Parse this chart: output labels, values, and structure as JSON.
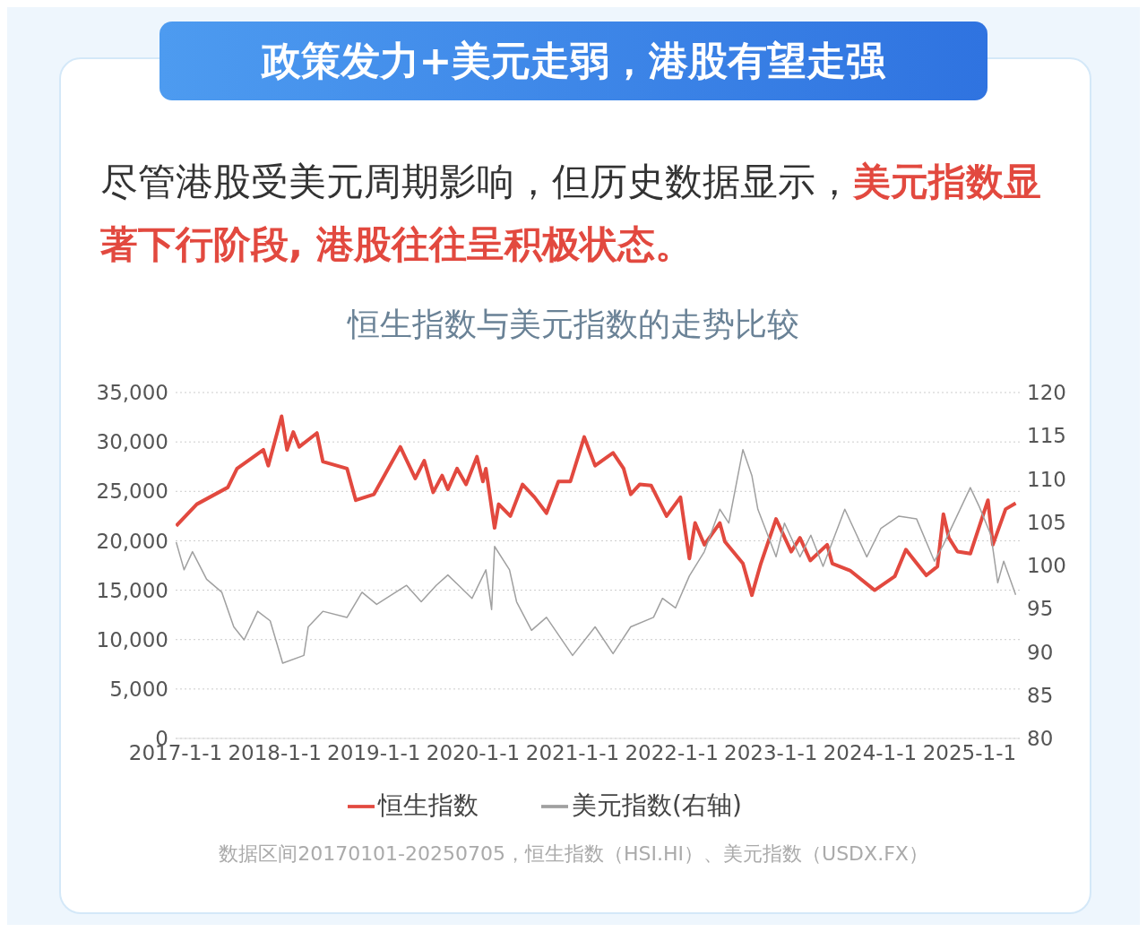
{
  "chart_data": {
    "type": "line",
    "title": "政策发力+美元走弱，港股有望走强",
    "subtitle": "恒生指数与美元指数的走势比较",
    "annotations": [
      "尽管港股受美元周期影响，但历史数据显示，",
      "美元指数显著下行阶段, 港股往往呈积极状态。",
      "数据区间20170101-20250705，恒生指数（HSI.HI）、美元指数（USDX.FX）"
    ],
    "xlim": [
      "2017-01-01",
      "2025-07-05"
    ],
    "xticks": [
      {
        "value": "2017-01-01",
        "label": "2017-1-1"
      },
      {
        "value": "2018-01-01",
        "label": "2018-1-1"
      },
      {
        "value": "2019-01-01",
        "label": "2019-1-1"
      },
      {
        "value": "2020-01-01",
        "label": "2020-1-1"
      },
      {
        "value": "2021-01-01",
        "label": "2021-1-1"
      },
      {
        "value": "2022-01-01",
        "label": "2022-1-1"
      },
      {
        "value": "2023-01-01",
        "label": "2023-1-1"
      },
      {
        "value": "2024-01-01",
        "label": "2024-1-1"
      },
      {
        "value": "2025-01-01",
        "label": "2025-1-1"
      }
    ],
    "ylim": [
      0,
      35000
    ],
    "yticks": [
      0,
      {
        "value": 5000,
        "label": "5,000"
      },
      {
        "value": 10000,
        "label": "10,000"
      },
      {
        "value": 15000,
        "label": "15,000"
      },
      {
        "value": 20000,
        "label": "20,000"
      },
      {
        "value": 25000,
        "label": "25,000"
      },
      {
        "value": 30000,
        "label": "30,000"
      },
      {
        "value": 35000,
        "label": "35,000"
      }
    ],
    "y2lim": [
      80,
      120
    ],
    "y2ticks": [
      80,
      85,
      90,
      95,
      100,
      105,
      110,
      115,
      120
    ],
    "grid": "y",
    "legend": "bottom",
    "marker": "none",
    "series": [
      {
        "name": "恒生指数",
        "color": "#e2493f",
        "x": [
          "2017-01-03",
          "2017-03-20",
          "2017-07-12",
          "2017-08-15",
          "2017-11-20",
          "2017-12-08",
          "2018-01-26",
          "2018-02-15",
          "2018-03-10",
          "2018-04-01",
          "2018-06-05",
          "2018-06-27",
          "2018-09-24",
          "2018-10-26",
          "2019-01-01",
          "2019-04-08",
          "2019-06-02",
          "2019-07-05",
          "2019-08-07",
          "2019-09-09",
          "2019-09-30",
          "2019-11-03",
          "2019-12-06",
          "2020-01-15",
          "2020-02-06",
          "2020-02-17",
          "2020-03-20",
          "2020-04-04",
          "2020-05-17",
          "2020-07-01",
          "2020-08-14",
          "2020-09-27",
          "2020-11-10",
          "2020-12-24",
          "2021-02-13",
          "2021-03-25",
          "2021-05-30",
          "2021-07-08",
          "2021-08-03",
          "2021-09-05",
          "2021-10-17",
          "2021-12-13",
          "2022-02-02",
          "2022-03-07",
          "2022-03-28",
          "2022-05-01",
          "2022-06-27",
          "2022-07-16",
          "2022-09-20",
          "2022-10-23",
          "2022-11-25",
          "2023-01-20",
          "2023-03-17",
          "2023-04-18",
          "2023-05-26",
          "2023-07-27",
          "2023-08-15",
          "2023-10-19",
          "2024-01-18",
          "2024-04-01",
          "2024-05-12",
          "2024-07-26",
          "2024-09-05",
          "2024-09-27",
          "2024-10-17",
          "2024-11-18",
          "2025-01-04",
          "2025-03-10",
          "2025-03-28",
          "2025-05-14",
          "2025-06-20"
        ],
        "values": [
          21500,
          23700,
          25400,
          27300,
          29200,
          27600,
          32600,
          29200,
          31000,
          29500,
          30900,
          28000,
          27300,
          24100,
          24700,
          29500,
          26300,
          28100,
          24900,
          26600,
          25200,
          27300,
          25700,
          28500,
          26000,
          27300,
          21300,
          23700,
          22500,
          25700,
          24400,
          22800,
          26000,
          26000,
          30500,
          27600,
          28900,
          27300,
          24700,
          25700,
          25600,
          22500,
          24400,
          18200,
          21800,
          19600,
          21800,
          19900,
          17700,
          14500,
          17700,
          22200,
          18900,
          20300,
          18000,
          19600,
          17700,
          17000,
          15000,
          16400,
          19100,
          16500,
          17400,
          22700,
          20300,
          18900,
          18700,
          24100,
          19600,
          23200,
          23800
        ]
      },
      {
        "name": "美元指数(右轴)",
        "color": "#a0a0a0",
        "axis": "y2",
        "x": [
          "2017-01-03",
          "2017-02-01",
          "2017-03-04",
          "2017-04-25",
          "2017-06-20",
          "2017-08-03",
          "2017-09-10",
          "2017-10-30",
          "2017-12-15",
          "2018-01-30",
          "2018-04-18",
          "2018-05-04",
          "2018-06-27",
          "2018-09-24",
          "2018-11-18",
          "2019-01-11",
          "2019-05-01",
          "2019-06-24",
          "2019-08-18",
          "2019-09-30",
          "2019-12-28",
          "2020-02-17",
          "2020-03-09",
          "2020-03-20",
          "2020-05-14",
          "2020-06-09",
          "2020-08-03",
          "2020-09-27",
          "2021-01-01",
          "2021-03-25",
          "2021-05-30",
          "2021-08-03",
          "2021-10-26",
          "2021-11-28",
          "2022-01-15",
          "2022-03-07",
          "2022-05-01",
          "2022-06-27",
          "2022-07-30",
          "2022-09-20",
          "2022-10-23",
          "2022-11-14",
          "2023-01-20",
          "2023-02-20",
          "2023-04-18",
          "2023-05-28",
          "2023-07-12",
          "2023-09-30",
          "2023-12-20",
          "2024-02-10",
          "2024-04-16",
          "2024-06-20",
          "2024-08-25",
          "2024-09-27",
          "2025-01-04",
          "2025-02-06",
          "2025-03-21",
          "2025-04-15",
          "2025-05-07",
          "2025-06-20"
        ],
        "values": [
          102.7,
          99.5,
          101.6,
          98.4,
          96.9,
          92.9,
          91.4,
          94.7,
          93.6,
          88.7,
          89.6,
          92.9,
          94.7,
          94.0,
          96.9,
          95.5,
          97.7,
          95.8,
          97.7,
          98.9,
          96.2,
          99.5,
          94.9,
          102.2,
          99.5,
          95.8,
          92.5,
          94.0,
          89.6,
          92.9,
          89.8,
          92.9,
          94.0,
          96.2,
          95.1,
          98.8,
          101.6,
          106.5,
          104.9,
          113.4,
          110.4,
          106.5,
          101.0,
          104.9,
          101.0,
          103.5,
          99.9,
          106.5,
          101.0,
          104.3,
          105.7,
          105.4,
          100.5,
          102.4,
          109.0,
          106.8,
          103.5,
          98.0,
          100.5,
          96.6
        ]
      }
    ]
  }
}
